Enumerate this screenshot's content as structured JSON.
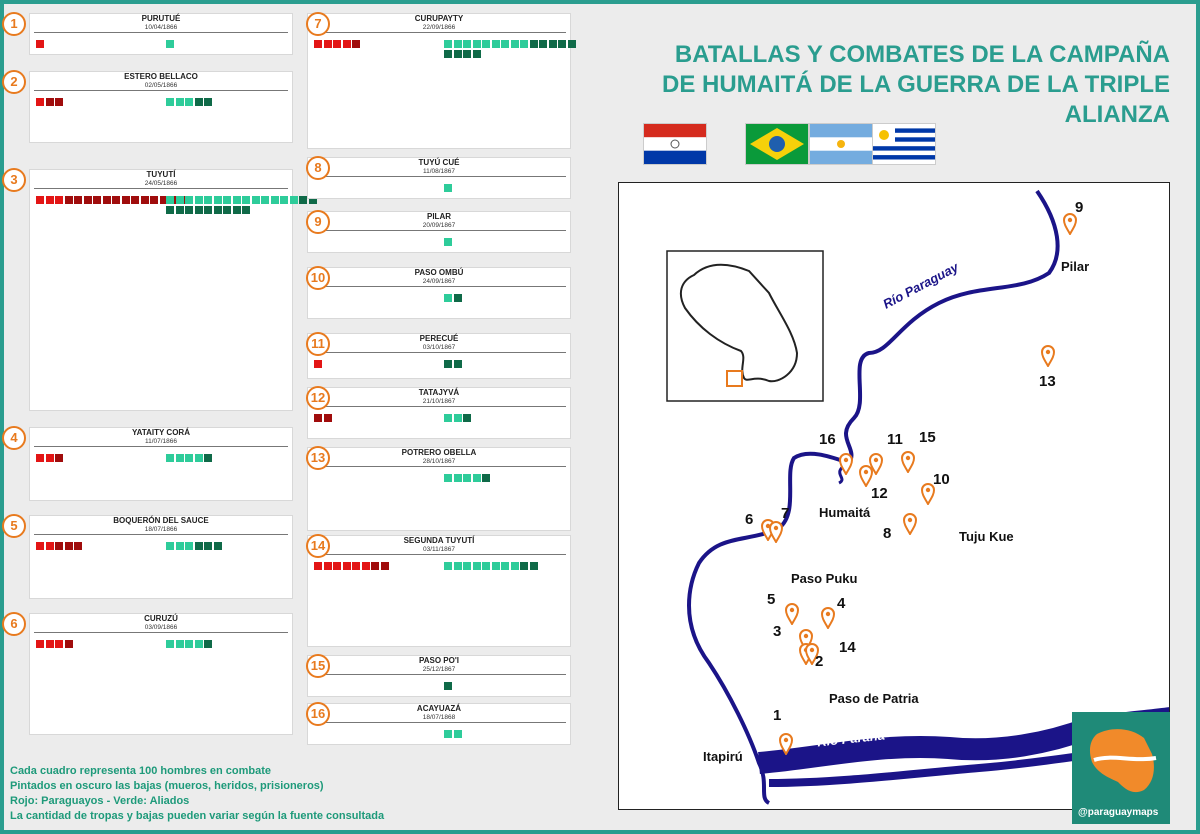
{
  "title": {
    "line1": "BATALLAS Y COMBATES DE LA CAMPAÑA",
    "line2": "DE HUMAITÁ DE LA GUERRA DE LA TRIPLE",
    "line3": "ALIANZA"
  },
  "colors": {
    "accent": "#2a9d8f",
    "paraguay": "#e31515",
    "paraguay_losses": "#a00c0c",
    "allies": "#2ecc9a",
    "allies_losses": "#0f6a48",
    "pin": "#e87a1e",
    "river": "#1b1488"
  },
  "battles": [
    {
      "num": "1",
      "name": "PURUTUÉ",
      "date": "10/04/1866",
      "py": [
        10,
        0
      ],
      "al": [
        10,
        0
      ]
    },
    {
      "num": "2",
      "name": "ESTERO BELLACO",
      "date": "02/05/1866",
      "py": [
        30,
        20
      ],
      "al": [
        50,
        15
      ]
    },
    {
      "num": "3",
      "name": "TUYUTÍ",
      "date": "24/05/1866",
      "py": [
        160,
        130
      ],
      "al": [
        250,
        110
      ]
    },
    {
      "num": "4",
      "name": "YATAITY CORÁ",
      "date": "11/07/1866",
      "py": [
        25,
        5
      ],
      "al": [
        45,
        6
      ]
    },
    {
      "num": "5",
      "name": "BOQUERÓN DEL SAUCE",
      "date": "18/07/1866",
      "py": [
        50,
        25
      ],
      "al": [
        55,
        25
      ]
    },
    {
      "num": "6",
      "name": "CURUZÚ",
      "date": "03/09/1866",
      "py": [
        40,
        8
      ],
      "al": [
        45,
        12
      ]
    },
    {
      "num": "7",
      "name": "CURUPAYTY",
      "date": "22/09/1866",
      "py": [
        50,
        5
      ],
      "al": [
        180,
        90
      ]
    },
    {
      "num": "8",
      "name": "TUYÚ CUÉ",
      "date": "11/08/1867",
      "py": [
        4,
        2
      ],
      "al": [
        12,
        4
      ]
    },
    {
      "num": "9",
      "name": "PILAR",
      "date": "20/09/1867",
      "py": [
        4,
        2
      ],
      "al": [
        12,
        4
      ]
    },
    {
      "num": "10",
      "name": "PASO OMBÚ",
      "date": "24/09/1867",
      "py": [
        4,
        1
      ],
      "al": [
        20,
        12
      ]
    },
    {
      "num": "11",
      "name": "PERECUÉ",
      "date": "03/10/1867",
      "py": [
        10,
        2
      ],
      "al": [
        20,
        16
      ]
    },
    {
      "num": "12",
      "name": "TATAJYVÁ",
      "date": "21/10/1867",
      "py": [
        20,
        15
      ],
      "al": [
        30,
        5
      ]
    },
    {
      "num": "13",
      "name": "POTRERO OBELLA",
      "date": "28/10/1867",
      "py": [
        4,
        2
      ],
      "al": [
        45,
        5
      ]
    },
    {
      "num": "14",
      "name": "SEGUNDA TUYUTÍ",
      "date": "03/11/1867",
      "py": [
        80,
        20
      ],
      "al": [
        100,
        20
      ]
    },
    {
      "num": "15",
      "name": "PASO PO'I",
      "date": "25/12/1867",
      "py": [
        2,
        0
      ],
      "al": [
        12,
        5
      ]
    },
    {
      "num": "16",
      "name": "ACAYUAZÁ",
      "date": "18/07/1868",
      "py": [
        4,
        3
      ],
      "al": [
        18,
        0
      ]
    }
  ],
  "notes": [
    "Cada cuadro representa 100 hombres en combate",
    "Pintados en oscuro las bajas (mueros, heridos, prisioneros)",
    "Rojo: Paraguayos - Verde: Aliados",
    "La cantidad de tropas y bajas pueden variar según la fuente consultada"
  ],
  "map": {
    "rivers": {
      "paraguay": "Río Paraguay",
      "parana": "Río Paraná"
    },
    "places": {
      "pilar": "Pilar",
      "humaita": "Humaitá",
      "tuju_kue": "Tuju Kue",
      "paso_puku": "Paso Puku",
      "paso_patria": "Paso de Patria",
      "itapiru": "Itapirú"
    },
    "pin_numbers": [
      "9",
      "13",
      "16",
      "11",
      "15",
      "12",
      "10",
      "6",
      "7",
      "8",
      "5",
      "4",
      "3",
      "14",
      "2",
      "1"
    ]
  },
  "logo": {
    "handle": "@paraguaymaps"
  }
}
